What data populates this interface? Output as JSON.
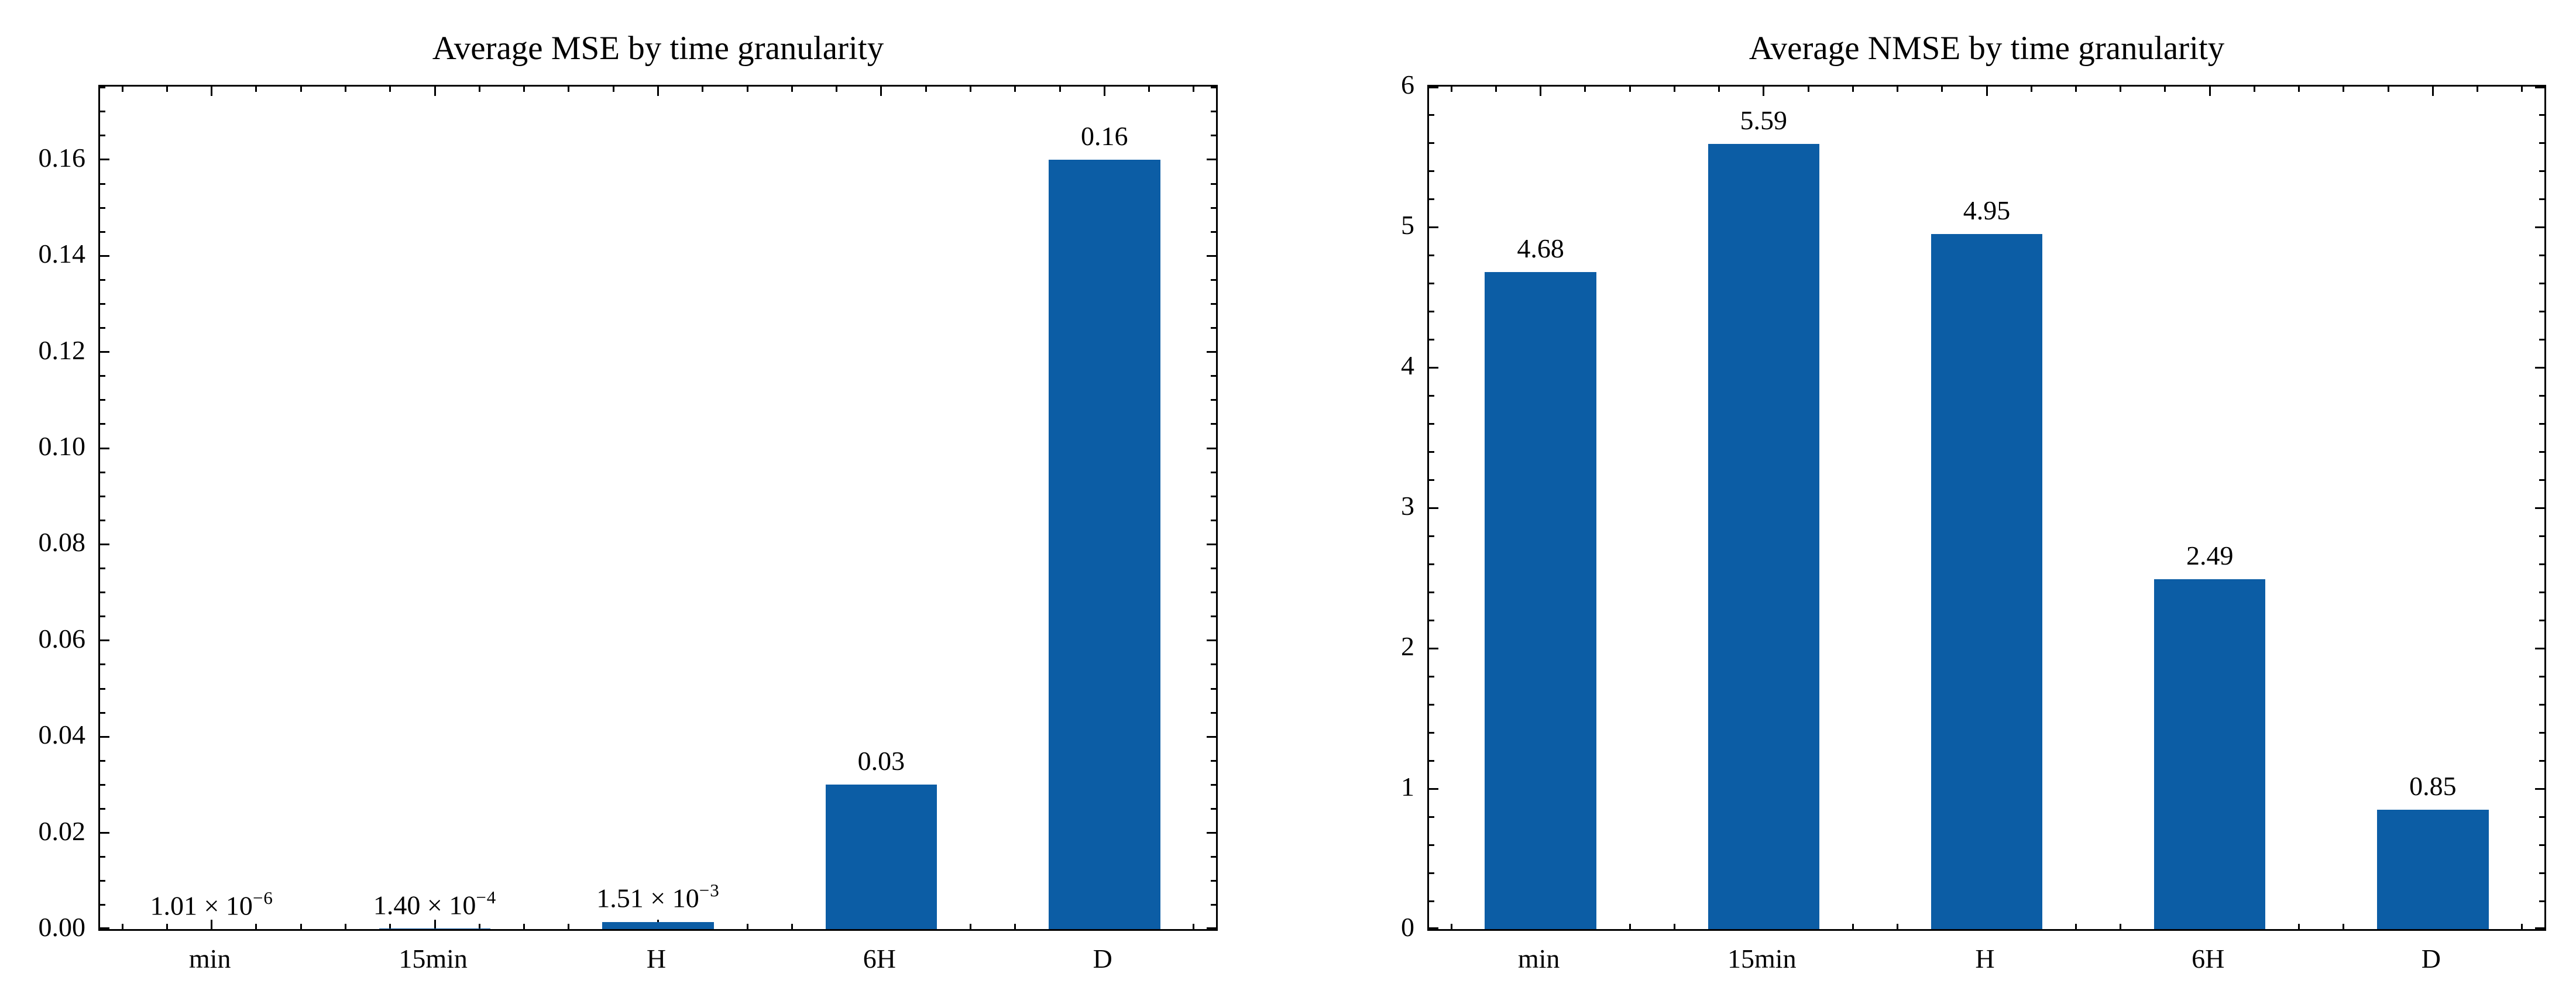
{
  "figure": {
    "background": "#ffffff",
    "text_color": "#000000",
    "axis_color": "#000000"
  },
  "chart_data": [
    {
      "type": "bar",
      "title": "Average MSE by time granularity",
      "categories": [
        "min",
        "15min",
        "H",
        "6H",
        "D"
      ],
      "values": [
        1.01e-06,
        0.00014,
        0.00151,
        0.03,
        0.16
      ],
      "bar_labels": [
        "1.01 × 10^−6",
        "1.40 × 10^−4",
        "1.51 × 10^−3",
        "0.03",
        "0.16"
      ],
      "xlabel": "",
      "ylabel": "",
      "ylim": [
        0,
        0.1752
      ],
      "y_major_ticks": [
        {
          "v": 0.0,
          "label": "0.00"
        },
        {
          "v": 0.02,
          "label": "0.02"
        },
        {
          "v": 0.04,
          "label": "0.04"
        },
        {
          "v": 0.06,
          "label": "0.06"
        },
        {
          "v": 0.08,
          "label": "0.08"
        },
        {
          "v": 0.1,
          "label": "0.10"
        },
        {
          "v": 0.12,
          "label": "0.12"
        },
        {
          "v": 0.14,
          "label": "0.14"
        },
        {
          "v": 0.16,
          "label": "0.16"
        }
      ],
      "y_minor_step": 0.005,
      "x_minor_step": 0.2,
      "bar_width_frac": 0.5,
      "bar_color": "#0C5DA5",
      "grid": false,
      "legend": null,
      "tick_direction": "in"
    },
    {
      "type": "bar",
      "title": "Average NMSE by time granularity",
      "categories": [
        "min",
        "15min",
        "H",
        "6H",
        "D"
      ],
      "values": [
        4.68,
        5.59,
        4.95,
        2.49,
        0.85
      ],
      "bar_labels": [
        "4.68",
        "5.59",
        "4.95",
        "2.49",
        "0.85"
      ],
      "xlabel": "",
      "ylabel": "",
      "ylim": [
        0,
        6
      ],
      "y_major_ticks": [
        {
          "v": 0,
          "label": "0"
        },
        {
          "v": 1,
          "label": "1"
        },
        {
          "v": 2,
          "label": "2"
        },
        {
          "v": 3,
          "label": "3"
        },
        {
          "v": 4,
          "label": "4"
        },
        {
          "v": 5,
          "label": "5"
        },
        {
          "v": 6,
          "label": "6"
        }
      ],
      "y_minor_step": 0.2,
      "x_minor_step": 0.2,
      "bar_width_frac": 0.5,
      "bar_color": "#0C5DA5",
      "grid": false,
      "legend": null,
      "tick_direction": "in"
    }
  ]
}
